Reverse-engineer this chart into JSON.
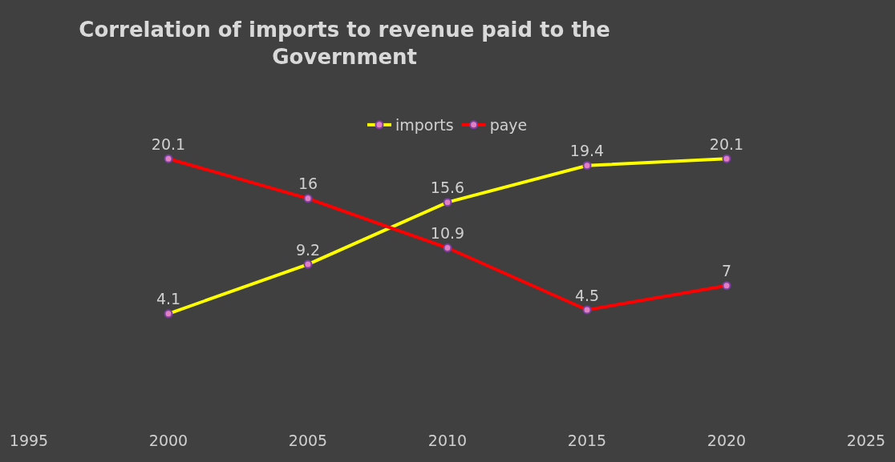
{
  "chart_data": {
    "type": "line",
    "title": "Correlation of imports to revenue paid to the Government",
    "x": [
      2000,
      2005,
      2010,
      2015,
      2020
    ],
    "series": [
      {
        "name": "imports",
        "color": "#ffff00",
        "values": [
          4.1,
          9.2,
          15.6,
          19.4,
          20.1
        ]
      },
      {
        "name": "paye",
        "color": "#ff0000",
        "values": [
          20.1,
          16,
          10.9,
          4.5,
          7
        ]
      }
    ],
    "xlim": [
      1995,
      2025
    ],
    "xticks": [
      1995,
      2000,
      2005,
      2010,
      2015,
      2020,
      2025
    ],
    "data_labels": true,
    "legend": "top",
    "grid": false,
    "marker": "circle",
    "line_style": "solid"
  }
}
